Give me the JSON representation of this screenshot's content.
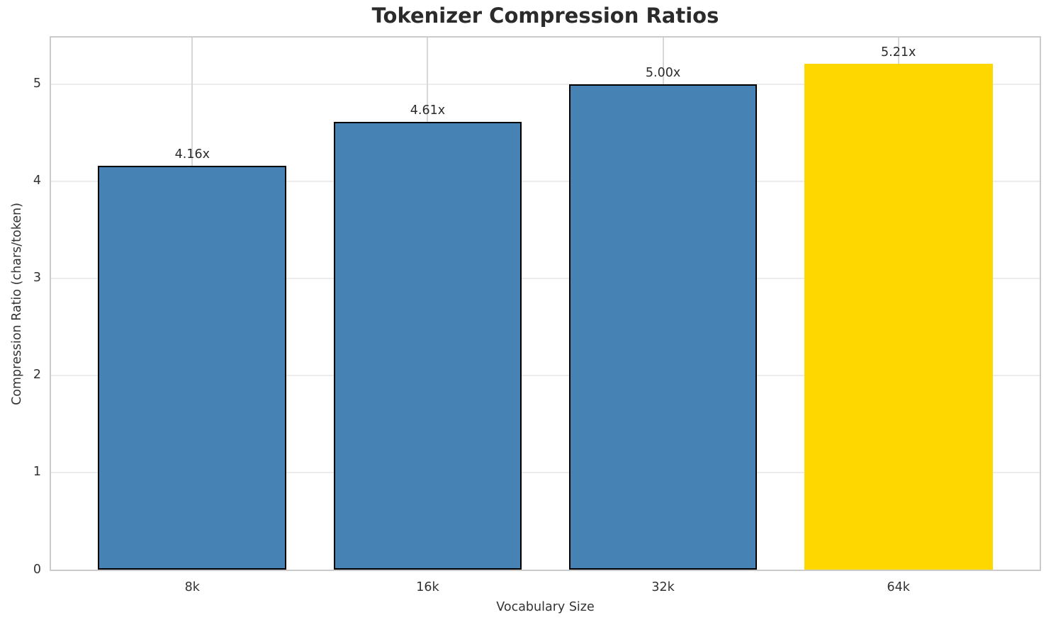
{
  "chart_data": {
    "type": "bar",
    "title": "Tokenizer Compression Ratios",
    "xlabel": "Vocabulary Size",
    "ylabel": "Compression Ratio (chars/token)",
    "categories": [
      "8k",
      "16k",
      "32k",
      "64k"
    ],
    "values": [
      4.16,
      4.61,
      5.0,
      5.21
    ],
    "value_labels": [
      "4.16x",
      "4.61x",
      "5.00x",
      "5.21x"
    ],
    "bar_colors": [
      "#4682B4",
      "#4682B4",
      "#4682B4",
      "#FFD700"
    ],
    "bar_edge_colors": [
      "#000000",
      "#000000",
      "#000000",
      "none"
    ],
    "ylim": [
      0,
      5.48
    ],
    "yticks": [
      0,
      1,
      2,
      3,
      4,
      5
    ],
    "bar_width_fraction": 0.8,
    "grid": true,
    "legend": null
  },
  "colors": {
    "background": "#ffffff",
    "spine": "#cbcbcb",
    "horizontal_gridline": "#ececec",
    "vertical_gridline": "#d7d7d7",
    "text": "#2b2b2b",
    "primary_bar": "#4682B4",
    "highlight_bar": "#FFD700"
  }
}
